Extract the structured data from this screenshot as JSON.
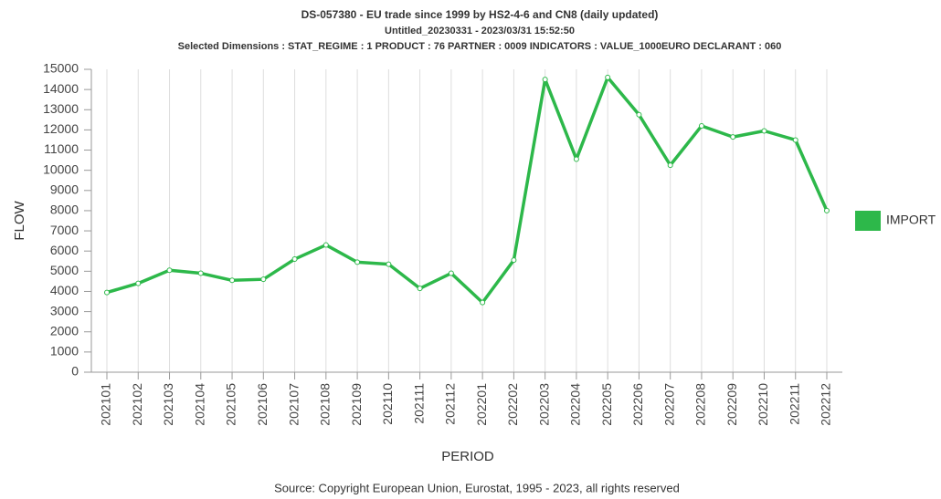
{
  "chart_data": {
    "type": "line",
    "title": "DS-057380 - EU trade since 1999 by HS2-4-6 and CN8 (daily updated)",
    "subtitle": "Untitled_20230331 - 2023/03/31 15:52:50",
    "dimensions": "Selected Dimensions : STAT_REGIME : 1    PRODUCT : 76    PARTNER : 0009    INDICATORS : VALUE_1000EURO    DECLARANT : 060",
    "y_label": "FLOW",
    "x_label": "PERIOD",
    "source": "Source: Copyright European Union, Eurostat, 1995 - 2023, all rights reserved",
    "categories": [
      "202101",
      "202102",
      "202103",
      "202104",
      "202105",
      "202106",
      "202107",
      "202108",
      "202109",
      "202110",
      "202111",
      "202112",
      "202201",
      "202202",
      "202203",
      "202204",
      "202205",
      "202206",
      "202207",
      "202208",
      "202209",
      "202210",
      "202211",
      "202212"
    ],
    "series": [
      {
        "name": "IMPORT",
        "color": "#2db84a",
        "values": [
          3950,
          4400,
          5050,
          4900,
          4550,
          4600,
          5600,
          6300,
          5450,
          5350,
          4150,
          4900,
          3450,
          5550,
          14500,
          10550,
          14600,
          12750,
          10250,
          12200,
          11650,
          11950,
          11500,
          8000
        ]
      }
    ],
    "ylim": [
      0,
      15000
    ],
    "yticks": [
      0,
      1000,
      2000,
      3000,
      4000,
      5000,
      6000,
      7000,
      8000,
      9000,
      10000,
      11000,
      12000,
      13000,
      14000,
      15000
    ],
    "grid": "x",
    "legend": "right"
  }
}
